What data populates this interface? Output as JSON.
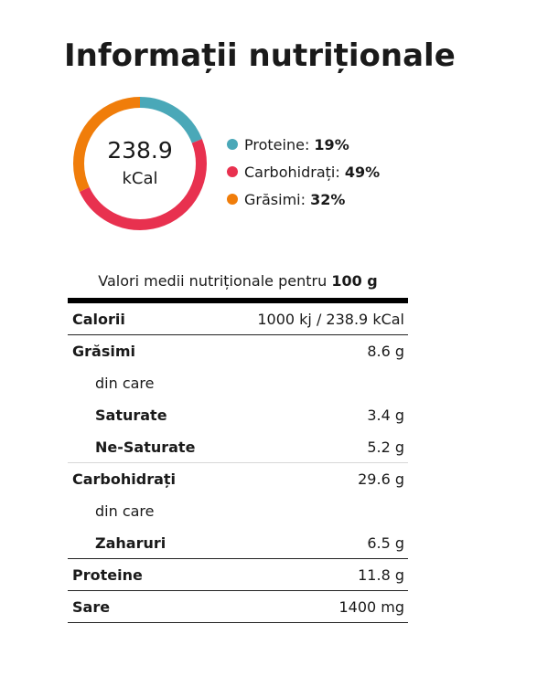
{
  "title": "Informații nutriționale",
  "energy": {
    "value": "238.9",
    "unit": "kCal"
  },
  "macros": [
    {
      "name": "Proteine",
      "percent": 19,
      "percent_label": "19%",
      "color": "#4aa8b8"
    },
    {
      "name": "Carbohidrați",
      "percent": 49,
      "percent_label": "49%",
      "color": "#e8314f"
    },
    {
      "name": "Grăsimi",
      "percent": 32,
      "percent_label": "32%",
      "color": "#f07d0a"
    }
  ],
  "legend_separator": ":",
  "table": {
    "caption_prefix": "Valori medii nutriționale pentru",
    "caption_amount": "100 g",
    "rows": [
      {
        "label": "Calorii",
        "value": "1000 kj / 238.9 kCal"
      },
      {
        "label": "Grăsimi",
        "value": "8.6 g"
      },
      {
        "label": "din care",
        "value": ""
      },
      {
        "label": "Saturate",
        "value": "3.4 g"
      },
      {
        "label": "Ne-Saturate",
        "value": "5.2 g"
      },
      {
        "label": "Carbohidrați",
        "value": "29.6 g"
      },
      {
        "label": "din care",
        "value": ""
      },
      {
        "label": "Zaharuri",
        "value": "6.5 g"
      },
      {
        "label": "Proteine",
        "value": "11.8 g"
      },
      {
        "label": "Sare",
        "value": "1400 mg"
      }
    ]
  }
}
